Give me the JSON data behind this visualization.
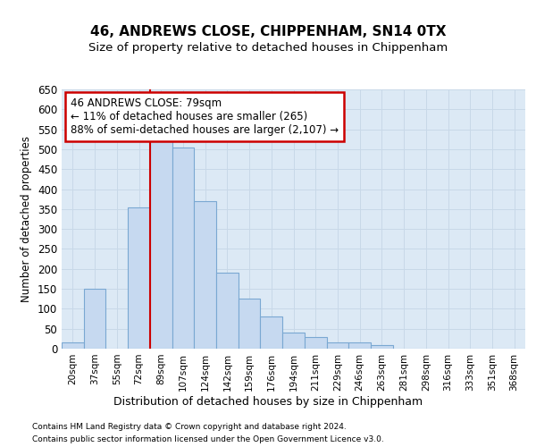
{
  "title1": "46, ANDREWS CLOSE, CHIPPENHAM, SN14 0TX",
  "title2": "Size of property relative to detached houses in Chippenham",
  "xlabel": "Distribution of detached houses by size in Chippenham",
  "ylabel": "Number of detached properties",
  "categories": [
    "20sqm",
    "37sqm",
    "55sqm",
    "72sqm",
    "89sqm",
    "107sqm",
    "124sqm",
    "142sqm",
    "159sqm",
    "176sqm",
    "194sqm",
    "211sqm",
    "229sqm",
    "246sqm",
    "263sqm",
    "281sqm",
    "298sqm",
    "316sqm",
    "333sqm",
    "351sqm",
    "368sqm"
  ],
  "values": [
    15,
    150,
    0,
    355,
    530,
    505,
    370,
    190,
    125,
    80,
    40,
    30,
    15,
    15,
    10,
    0,
    0,
    0,
    0,
    0,
    0
  ],
  "bar_color": "#c6d9f0",
  "bar_edge_color": "#7aa8d2",
  "grid_color": "#c8d8e8",
  "bg_color": "#dce9f5",
  "annotation_line1": "46 ANDREWS CLOSE: 79sqm",
  "annotation_line2": "← 11% of detached houses are smaller (265)",
  "annotation_line3": "88% of semi-detached houses are larger (2,107) →",
  "annotation_box_color": "#ffffff",
  "annotation_box_edge": "#cc0000",
  "vline_x": 3.5,
  "ylim": [
    0,
    650
  ],
  "yticks": [
    0,
    50,
    100,
    150,
    200,
    250,
    300,
    350,
    400,
    450,
    500,
    550,
    600,
    650
  ],
  "footer1": "Contains HM Land Registry data © Crown copyright and database right 2024.",
  "footer2": "Contains public sector information licensed under the Open Government Licence v3.0."
}
